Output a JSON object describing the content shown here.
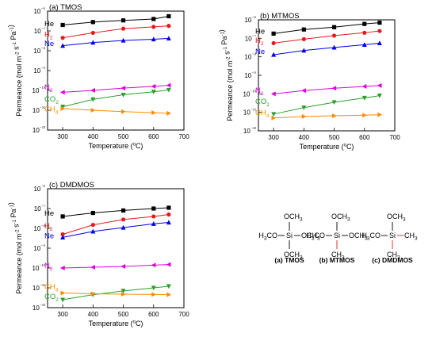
{
  "chart_data": [
    {
      "type": "line",
      "title": "(a) TMOS",
      "xlabel": "Temperature (°C)",
      "ylabel": "Permeance (mol m⁻² s⁻¹ Pa⁻¹)",
      "xlim": [
        250,
        700
      ],
      "ylim_log10": [
        -12,
        -6
      ],
      "x_ticks": [
        300,
        400,
        500,
        600,
        700
      ],
      "y_ticks": [
        "10⁻¹²",
        "10⁻¹¹",
        "10⁻¹⁰",
        "10⁻⁹",
        "10⁻⁸",
        "10⁻⁷",
        "10⁻⁶"
      ],
      "x": [
        300,
        400,
        500,
        600,
        650
      ],
      "series": [
        {
          "name": "He",
          "color": "#000000",
          "marker": "square",
          "values": [
            2e-07,
            2.8e-07,
            3.4e-07,
            4e-07,
            5.5e-07
          ]
        },
        {
          "name": "H2",
          "color": "#e41a1c",
          "marker": "circle",
          "values": [
            4.5e-08,
            8e-08,
            1.3e-07,
            1.6e-07,
            1.8e-07
          ]
        },
        {
          "name": "Ne",
          "color": "#0000ee",
          "marker": "triangle-up",
          "values": [
            1.8e-08,
            2.6e-08,
            3.3e-08,
            3.8e-08,
            4.2e-08
          ]
        },
        {
          "name": "N2",
          "color": "#dd00dd",
          "marker": "triangle-left",
          "values": [
            8e-11,
            1e-10,
            1.3e-10,
            1.6e-10,
            1.8e-10
          ]
        },
        {
          "name": "CO2",
          "color": "#2ca02c",
          "marker": "triangle-down",
          "values": [
            1.5e-11,
            3.5e-11,
            6e-11,
            8.5e-11,
            1.05e-10
          ]
        },
        {
          "name": "CH4",
          "color": "#ff8c00",
          "marker": "triangle-right",
          "values": [
            1.2e-11,
            1e-11,
            8.5e-12,
            7.5e-12,
            7e-12
          ]
        }
      ]
    },
    {
      "type": "line",
      "title": "(b) MTMOS",
      "xlabel": "Temperature (°C)",
      "ylabel": "Permeance (mol m⁻² s⁻¹ Pa⁻¹)",
      "xlim": [
        250,
        700
      ],
      "ylim_log10": [
        -12,
        -6
      ],
      "x_ticks": [
        300,
        400,
        500,
        600,
        700
      ],
      "y_ticks": [
        "10⁻¹²",
        "10⁻¹¹",
        "10⁻¹⁰",
        "10⁻⁹",
        "10⁻⁸",
        "10⁻⁷",
        "10⁻⁶"
      ],
      "x": [
        300,
        400,
        500,
        600,
        650
      ],
      "series": [
        {
          "name": "He",
          "color": "#000000",
          "marker": "square",
          "values": [
            1.8e-07,
            3e-07,
            4e-07,
            6e-07,
            7e-07
          ]
        },
        {
          "name": "H2",
          "color": "#e41a1c",
          "marker": "circle",
          "values": [
            5.5e-08,
            9e-08,
            1.4e-07,
            2e-07,
            2.5e-07
          ]
        },
        {
          "name": "Ne",
          "color": "#0000ee",
          "marker": "triangle-up",
          "values": [
            1.3e-08,
            2.2e-08,
            3.2e-08,
            4.5e-08,
            5.5e-08
          ]
        },
        {
          "name": "N2",
          "color": "#dd00dd",
          "marker": "triangle-left",
          "values": [
            1e-10,
            1.5e-10,
            2e-10,
            2.5e-10,
            2.8e-10
          ]
        },
        {
          "name": "CO2",
          "color": "#2ca02c",
          "marker": "triangle-down",
          "values": [
            8e-12,
            1.8e-11,
            3.5e-11,
            6e-11,
            8e-11
          ]
        },
        {
          "name": "CH4",
          "color": "#ff8c00",
          "marker": "triangle-right",
          "values": [
            5e-12,
            6e-12,
            6.5e-12,
            7e-12,
            7.5e-12
          ]
        }
      ]
    },
    {
      "type": "line",
      "title": "(c) DMDMOS",
      "xlabel": "Temperature (°C)",
      "ylabel": "Permeance (mol m⁻² s⁻¹ Pa⁻¹)",
      "xlim": [
        250,
        700
      ],
      "ylim_log10": [
        -12,
        -6
      ],
      "x_ticks": [
        300,
        400,
        500,
        600,
        700
      ],
      "y_ticks": [
        "10⁻¹²",
        "10⁻¹¹",
        "10⁻¹⁰",
        "10⁻⁹",
        "10⁻⁸",
        "10⁻⁷",
        "10⁻⁶"
      ],
      "x": [
        300,
        400,
        500,
        600,
        650
      ],
      "series": [
        {
          "name": "He",
          "color": "#000000",
          "marker": "square",
          "values": [
            4e-08,
            6e-08,
            8e-08,
            1e-07,
            1.1e-07
          ]
        },
        {
          "name": "H2",
          "color": "#e41a1c",
          "marker": "circle",
          "values": [
            5e-09,
            1.5e-08,
            2.8e-08,
            4e-08,
            5e-08
          ]
        },
        {
          "name": "Ne",
          "color": "#0000ee",
          "marker": "triangle-up",
          "values": [
            3.5e-09,
            7e-09,
            1.1e-08,
            1.7e-08,
            2e-08
          ]
        },
        {
          "name": "N2",
          "color": "#dd00dd",
          "marker": "triangle-left",
          "values": [
            1e-10,
            1.1e-10,
            1.2e-10,
            1.4e-10,
            1.5e-10
          ]
        },
        {
          "name": "CO2",
          "color": "#2ca02c",
          "marker": "triangle-down",
          "values": [
            2.5e-12,
            4.5e-12,
            7e-12,
            1e-11,
            1.2e-11
          ]
        },
        {
          "name": "CH4",
          "color": "#ff8c00",
          "marker": "triangle-right",
          "values": [
            5.5e-12,
            5e-12,
            4.8e-12,
            4.6e-12,
            4.5e-12
          ]
        }
      ]
    }
  ],
  "structures": [
    {
      "caption": "(a) TMOS",
      "top": "OCH3",
      "left": "H3CO",
      "right": "OCH3",
      "bottom": "OCH3",
      "center": "Si"
    },
    {
      "caption": "(b) MTMOS",
      "top": "OCH3",
      "left": "H3CO",
      "right": "OCH3",
      "bottom": "CH3",
      "center": "Si"
    },
    {
      "caption": "(c) DMDMOS",
      "top": "OCH3",
      "left": "H3CO",
      "right": "CH3",
      "bottom": "CH3",
      "center": "Si"
    }
  ],
  "colors": {
    "methyl_bond": "#e41a1c"
  }
}
